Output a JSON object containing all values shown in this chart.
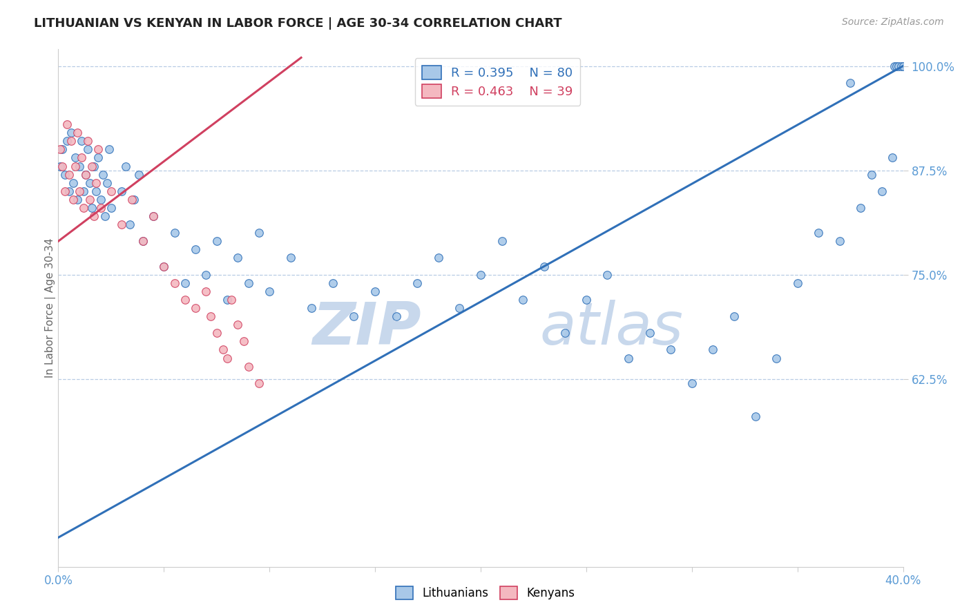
{
  "title": "LITHUANIAN VS KENYAN IN LABOR FORCE | AGE 30-34 CORRELATION CHART",
  "source_text": "Source: ZipAtlas.com",
  "ylabel": "In Labor Force | Age 30-34",
  "xlim": [
    0.0,
    0.4
  ],
  "ylim": [
    0.4,
    1.02
  ],
  "xticks": [
    0.0,
    0.05,
    0.1,
    0.15,
    0.2,
    0.25,
    0.3,
    0.35,
    0.4
  ],
  "xticklabels": [
    "0.0%",
    "",
    "",
    "",
    "",
    "",
    "",
    "",
    "40.0%"
  ],
  "ytick_positions": [
    0.625,
    0.75,
    0.875,
    1.0
  ],
  "ytick_labels": [
    "62.5%",
    "75.0%",
    "87.5%",
    "100.0%"
  ],
  "legend_r_blue": "R = 0.395",
  "legend_n_blue": "N = 80",
  "legend_r_pink": "R = 0.463",
  "legend_n_pink": "N = 39",
  "blue_color": "#a8c8e8",
  "pink_color": "#f4b8c0",
  "blue_line_color": "#3070b8",
  "pink_line_color": "#d04060",
  "watermark_zip_color": "#c8d8ec",
  "watermark_atlas_color": "#c8d8ec",
  "tick_label_color": "#5b9bd5",
  "grid_color": "#b8cce4",
  "background_color": "#ffffff",
  "blue_x": [
    0.001,
    0.002,
    0.003,
    0.004,
    0.005,
    0.006,
    0.007,
    0.008,
    0.009,
    0.01,
    0.011,
    0.012,
    0.013,
    0.014,
    0.015,
    0.016,
    0.017,
    0.018,
    0.019,
    0.02,
    0.021,
    0.022,
    0.023,
    0.024,
    0.025,
    0.03,
    0.032,
    0.034,
    0.036,
    0.038,
    0.04,
    0.045,
    0.05,
    0.055,
    0.06,
    0.065,
    0.07,
    0.075,
    0.08,
    0.085,
    0.09,
    0.095,
    0.1,
    0.11,
    0.12,
    0.13,
    0.14,
    0.15,
    0.16,
    0.17,
    0.18,
    0.19,
    0.2,
    0.21,
    0.22,
    0.23,
    0.24,
    0.25,
    0.26,
    0.27,
    0.28,
    0.29,
    0.3,
    0.31,
    0.32,
    0.33,
    0.34,
    0.35,
    0.36,
    0.37,
    0.375,
    0.38,
    0.385,
    0.39,
    0.395,
    0.396,
    0.397,
    0.398,
    0.399,
    0.4
  ],
  "blue_y": [
    0.88,
    0.9,
    0.87,
    0.91,
    0.85,
    0.92,
    0.86,
    0.89,
    0.84,
    0.88,
    0.91,
    0.85,
    0.87,
    0.9,
    0.86,
    0.83,
    0.88,
    0.85,
    0.89,
    0.84,
    0.87,
    0.82,
    0.86,
    0.9,
    0.83,
    0.85,
    0.88,
    0.81,
    0.84,
    0.87,
    0.79,
    0.82,
    0.76,
    0.8,
    0.74,
    0.78,
    0.75,
    0.79,
    0.72,
    0.77,
    0.74,
    0.8,
    0.73,
    0.77,
    0.71,
    0.74,
    0.7,
    0.73,
    0.7,
    0.74,
    0.77,
    0.71,
    0.75,
    0.79,
    0.72,
    0.76,
    0.68,
    0.72,
    0.75,
    0.65,
    0.68,
    0.66,
    0.62,
    0.66,
    0.7,
    0.58,
    0.65,
    0.74,
    0.8,
    0.79,
    0.98,
    0.83,
    0.87,
    0.85,
    0.89,
    1.0,
    1.0,
    1.0,
    1.0,
    1.0
  ],
  "pink_x": [
    0.001,
    0.002,
    0.003,
    0.004,
    0.005,
    0.006,
    0.007,
    0.008,
    0.009,
    0.01,
    0.011,
    0.012,
    0.013,
    0.014,
    0.015,
    0.016,
    0.017,
    0.018,
    0.019,
    0.02,
    0.025,
    0.03,
    0.035,
    0.04,
    0.045,
    0.05,
    0.055,
    0.06,
    0.065,
    0.07,
    0.072,
    0.075,
    0.078,
    0.08,
    0.082,
    0.085,
    0.088,
    0.09,
    0.095
  ],
  "pink_y": [
    0.9,
    0.88,
    0.85,
    0.93,
    0.87,
    0.91,
    0.84,
    0.88,
    0.92,
    0.85,
    0.89,
    0.83,
    0.87,
    0.91,
    0.84,
    0.88,
    0.82,
    0.86,
    0.9,
    0.83,
    0.85,
    0.81,
    0.84,
    0.79,
    0.82,
    0.76,
    0.74,
    0.72,
    0.71,
    0.73,
    0.7,
    0.68,
    0.66,
    0.65,
    0.72,
    0.69,
    0.67,
    0.64,
    0.62
  ]
}
